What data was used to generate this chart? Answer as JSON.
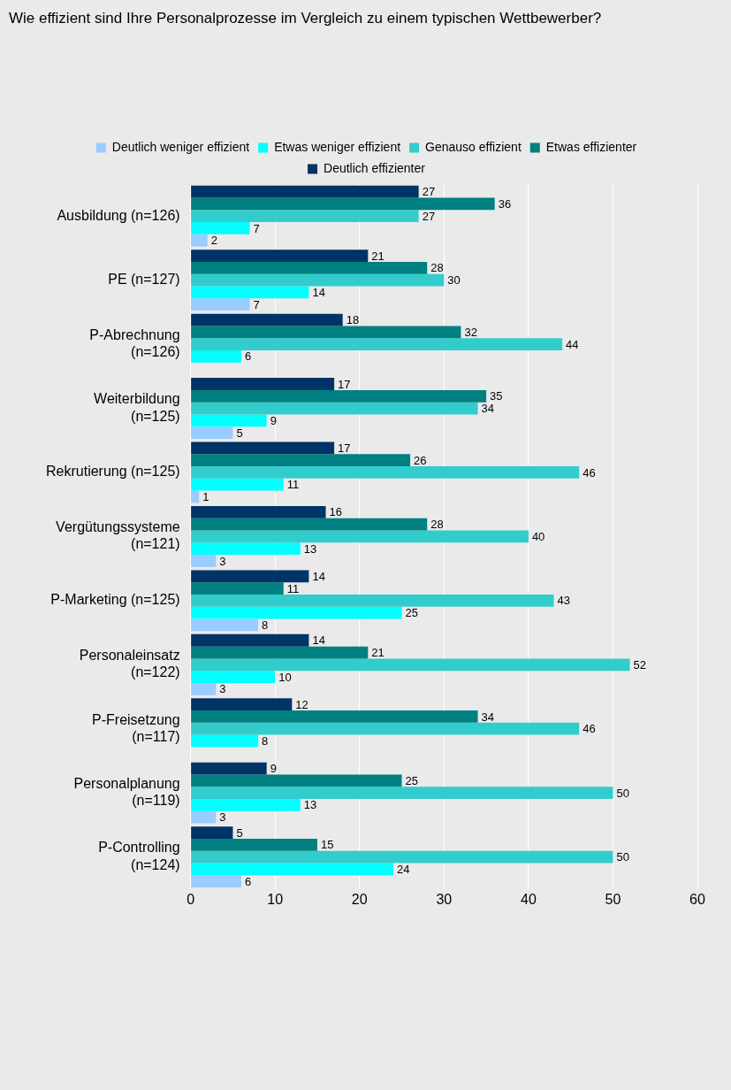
{
  "chart_data": {
    "type": "bar",
    "orientation": "horizontal",
    "title": "Wie effizient sind Ihre Personalprozesse im Vergleich zu einem typischen Wettbewerber?",
    "categories": [
      "Ausbildung (n=126)",
      "PE (n=127)",
      "P-Abrechnung\n(n=126)",
      "Weiterbildung\n(n=125)",
      "Rekrutierung (n=125)",
      "Vergütungssysteme\n(n=121)",
      "P-Marketing (n=125)",
      "Personaleinsatz\n(n=122)",
      "P-Freisetzung\n(n=117)",
      "Personalplanung\n(n=119)",
      "P-Controlling\n(n=124)"
    ],
    "series": [
      {
        "name": "Deutlich weniger effizient",
        "color": "#99ccff",
        "values": [
          2,
          7,
          null,
          5,
          1,
          3,
          8,
          3,
          null,
          3,
          6
        ]
      },
      {
        "name": "Etwas weniger effizient",
        "color": "#00ffff",
        "values": [
          7,
          14,
          6,
          9,
          11,
          13,
          25,
          10,
          8,
          13,
          24
        ]
      },
      {
        "name": "Genauso effizient",
        "color": "#33cccc",
        "values": [
          27,
          30,
          44,
          34,
          46,
          40,
          43,
          52,
          46,
          50,
          50
        ]
      },
      {
        "name": "Etwas effizienter",
        "color": "#008080",
        "values": [
          36,
          28,
          32,
          35,
          26,
          28,
          11,
          21,
          34,
          25,
          15
        ]
      },
      {
        "name": "Deutlich effizienter",
        "color": "#003366",
        "values": [
          27,
          21,
          18,
          17,
          17,
          16,
          14,
          14,
          12,
          9,
          5
        ]
      }
    ],
    "xlim": [
      0,
      60
    ],
    "xticks": [
      0,
      10,
      20,
      30,
      40,
      50,
      60
    ],
    "grid": "x",
    "legend": "top",
    "data_labels": true
  }
}
